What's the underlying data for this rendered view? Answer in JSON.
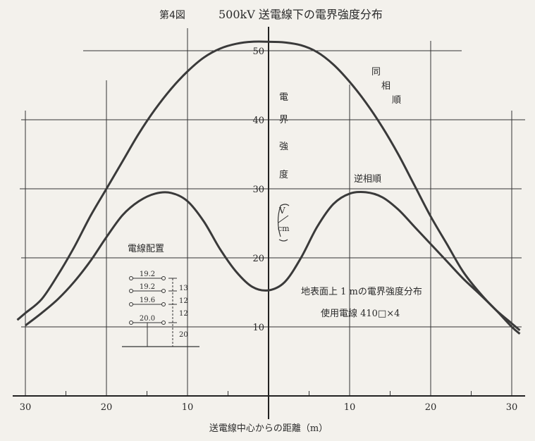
{
  "chart_data": {
    "type": "line",
    "figure_label": "第4図",
    "title": "500kV 送電線下の電界強度分布",
    "xlabel": "送電線中心からの距離（m）",
    "ylabel_chars": [
      "電",
      "界",
      "強",
      "度"
    ],
    "yunit_chars": [
      "V",
      "cm"
    ],
    "xlim": [
      -31,
      31
    ],
    "ylim": [
      8,
      53
    ],
    "x_ticks": [
      -30,
      -20,
      -10,
      0,
      10,
      20,
      30
    ],
    "x_tick_labels": [
      "30",
      "20",
      "10",
      "0",
      "10",
      "20",
      "30"
    ],
    "y_ticks": [
      10,
      20,
      30,
      40,
      50
    ],
    "y_tick_labels": [
      "10",
      "20",
      "30",
      "40",
      "50"
    ],
    "grid": true,
    "series": [
      {
        "name": "同相順",
        "label_chars": [
          "同",
          "相",
          "順"
        ],
        "x": [
          -31,
          -30,
          -28,
          -26,
          -24,
          -22,
          -20,
          -18,
          -16,
          -14,
          -12,
          -10,
          -8,
          -6,
          -4,
          -2,
          0,
          2,
          4,
          6,
          8,
          10,
          12,
          14,
          16,
          18,
          20,
          22,
          24,
          26,
          28,
          30,
          31
        ],
        "y": [
          11,
          12,
          14,
          17.5,
          21.5,
          26,
          30,
          34,
          38,
          41.5,
          44.5,
          47,
          49,
          50.3,
          51,
          51.3,
          51.3,
          51.2,
          50.8,
          49.8,
          48,
          45.5,
          42.5,
          39,
          35,
          30.5,
          26,
          22,
          18,
          15,
          12.5,
          10.5,
          9.5
        ]
      },
      {
        "name": "逆相順",
        "label_chars": [
          "逆相順"
        ],
        "x": [
          -30,
          -28,
          -26,
          -24,
          -22,
          -20,
          -18,
          -16,
          -14,
          -12,
          -10,
          -8,
          -6,
          -4,
          -2,
          0,
          2,
          4,
          6,
          8,
          10,
          12,
          14,
          16,
          18,
          20,
          22,
          24,
          26,
          28,
          30,
          31
        ],
        "y": [
          10.2,
          12,
          14,
          16.5,
          19.5,
          23,
          26.2,
          28.2,
          29.3,
          29.4,
          28.2,
          25.3,
          21.3,
          18,
          15.8,
          15.3,
          16.5,
          20,
          24.5,
          27.8,
          29.3,
          29.5,
          28.8,
          27,
          24.5,
          22,
          19.5,
          17,
          14.8,
          12.5,
          10,
          9
        ]
      }
    ],
    "annotations": {
      "note_line1": "地表面上 1 mの電界強度分布",
      "note_line2": "使用電線 410□×4"
    }
  },
  "inset": {
    "title": "電線配置",
    "spans": [
      "19.2",
      "19.2",
      "19.6",
      "20.0"
    ],
    "gaps": [
      "13",
      "12",
      "12",
      "20"
    ]
  }
}
